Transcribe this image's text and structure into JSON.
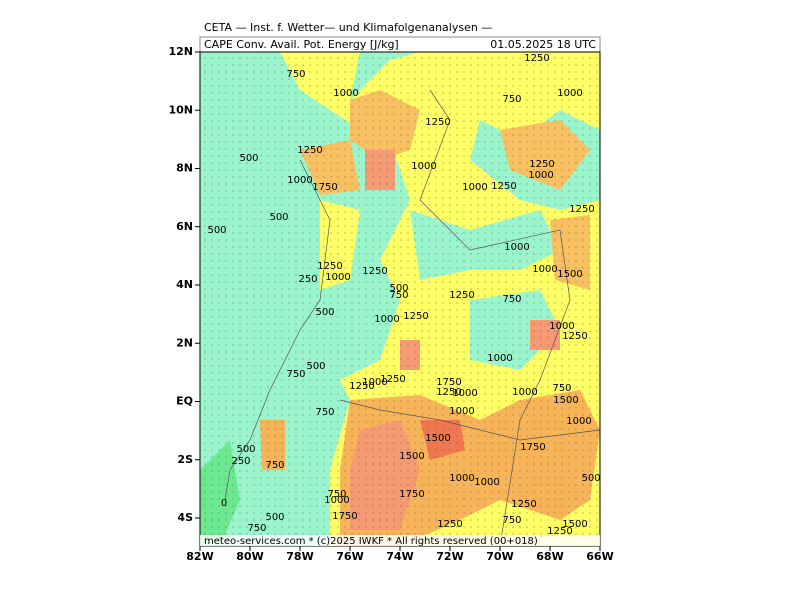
{
  "header": {
    "title": "CETA — Inst. f. Wetter— und Klimafolgenanalysen —",
    "field": "CAPE Conv. Avail. Pot. Energy [J/kg]",
    "time": "01.05.2025 18 UTC"
  },
  "axes": {
    "lat_labels": [
      "12N",
      "10N",
      "8N",
      "6N",
      "4N",
      "2N",
      "EQ",
      "2S",
      "4S"
    ],
    "lon_labels": [
      "82W",
      "80W",
      "78W",
      "76W",
      "74W",
      "72W",
      "70W",
      "68W",
      "66W"
    ]
  },
  "contour_labels": [
    750,
    1000,
    1250,
    750,
    1000,
    1250,
    1250,
    500,
    1000,
    1250,
    1000,
    1000,
    1750,
    1000,
    1250,
    500,
    500,
    1250,
    1000,
    1250,
    1000,
    1250,
    250,
    1000,
    1500,
    500,
    750,
    1250,
    750,
    500,
    1000,
    1250,
    1000,
    1250,
    1000,
    500,
    750,
    1250,
    1000,
    1250,
    1750,
    1250,
    1000,
    1000,
    750,
    1500,
    750,
    1000,
    1000,
    1500,
    500,
    1750,
    250,
    1500,
    750,
    1000,
    1000,
    500,
    750,
    1750,
    1000,
    1250,
    0,
    1750,
    500,
    750,
    1500,
    1250,
    750,
    1250
  ],
  "footer": "meteo-services.com * (c)2025 IWKF * All rights reserved (00+018)"
}
